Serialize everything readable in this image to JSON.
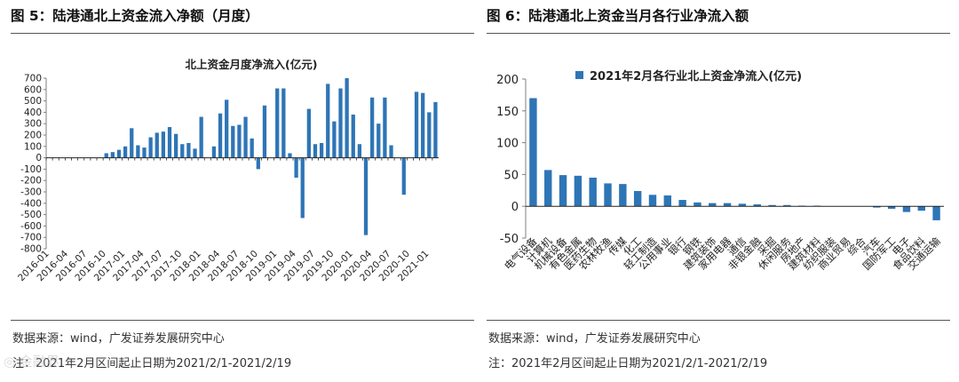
{
  "left": {
    "figure_title": "图 5：陆港通北上资金流入净额（月度）",
    "source": "数据来源：wind，广发证券发展研究中心",
    "note": "注：2021年2月区间起止日期为2021/2/1-2021/2/19"
  },
  "right": {
    "figure_title": "图 6：陆港通北上资金当月各行业净流入额",
    "source": "数据来源：wind，广发证券发展研究中心",
    "note": "注：2021年2月区间起止日期为2021/2/1-2021/2/19"
  },
  "watermark": "◎ 金融界",
  "colors": {
    "bar": "#2e75b6",
    "axis": "#7f7f7f",
    "text": "#222222"
  },
  "chart_data": [
    {
      "type": "bar",
      "title": "北上资金月度净流入(亿元)",
      "xlabel": "",
      "ylabel": "亿元",
      "ylim": [
        -800,
        700
      ],
      "yticks": [
        700,
        600,
        500,
        400,
        300,
        200,
        100,
        0,
        -100,
        -200,
        -300,
        -400,
        -500,
        -600,
        -700,
        -800
      ],
      "categories": [
        "2016-01",
        "2016-02",
        "2016-03",
        "2016-04",
        "2016-05",
        "2016-06",
        "2016-07",
        "2016-08",
        "2016-09",
        "2016-10",
        "2016-11",
        "2016-12",
        "2017-01",
        "2017-02",
        "2017-03",
        "2017-04",
        "2017-05",
        "2017-06",
        "2017-07",
        "2017-08",
        "2017-09",
        "2017-10",
        "2017-11",
        "2017-12",
        "2018-01",
        "2018-02",
        "2018-03",
        "2018-04",
        "2018-05",
        "2018-06",
        "2018-07",
        "2018-08",
        "2018-09",
        "2018-10",
        "2018-11",
        "2018-12",
        "2019-01",
        "2019-02",
        "2019-03",
        "2019-04",
        "2019-05",
        "2019-06",
        "2019-07",
        "2019-08",
        "2019-09",
        "2019-10",
        "2019-11",
        "2019-12",
        "2020-01",
        "2020-02",
        "2020-03",
        "2020-04",
        "2020-05",
        "2020-06",
        "2020-07",
        "2020-08",
        "2020-09",
        "2020-10",
        "2020-11",
        "2020-12",
        "2021-01",
        "2021-02"
      ],
      "tick_labels": [
        "2016-01",
        "2016-04",
        "2016-07",
        "2016-10",
        "2017-01",
        "2017-04",
        "2017-07",
        "2017-10",
        "2018-01",
        "2018-04",
        "2018-07",
        "2018-10",
        "2019-01",
        "2019-04",
        "2019-07",
        "2019-10",
        "2020-01",
        "2020-04",
        "2020-07",
        "2020-10",
        "2021-01"
      ],
      "values": [
        0,
        0,
        0,
        0,
        0,
        0,
        0,
        0,
        0,
        40,
        50,
        70,
        100,
        260,
        110,
        90,
        180,
        220,
        230,
        270,
        210,
        120,
        130,
        80,
        360,
        0,
        100,
        390,
        510,
        280,
        290,
        360,
        170,
        -100,
        460,
        0,
        610,
        610,
        40,
        -175,
        -530,
        430,
        120,
        130,
        650,
        320,
        610,
        700,
        380,
        120,
        -680,
        530,
        300,
        530,
        110,
        0,
        -325,
        0,
        580,
        570,
        400,
        490
      ]
    },
    {
      "type": "bar",
      "title": "2021年2月各行业北上资金净流入(亿元)",
      "legend": "2021年2月各行业北上资金净流入(亿元)",
      "legend_position": "top",
      "xlabel": "",
      "ylabel": "亿元",
      "ylim": [
        -50,
        200
      ],
      "yticks": [
        200,
        150,
        100,
        50,
        0,
        -50
      ],
      "categories": [
        "电气设备",
        "计算机",
        "机械设备",
        "有色金属",
        "医药生物",
        "农林牧渔",
        "传媒",
        "化工",
        "轻工制造",
        "公用事业",
        "银行",
        "钢铁",
        "建筑装饰",
        "家用电器",
        "通信",
        "非银金融",
        "采掘",
        "休闲服务",
        "房地产",
        "建筑材料",
        "纺织服装",
        "商业贸易",
        "综合",
        "汽车",
        "国防军工",
        "电子",
        "食品饮料",
        "交通运输"
      ],
      "values": [
        170,
        57,
        49,
        48,
        45,
        36,
        35,
        24,
        18,
        17,
        10,
        6,
        5,
        5,
        4,
        3,
        2,
        2,
        1,
        1,
        0,
        0,
        0,
        -2,
        -4,
        -9,
        -7,
        -22
      ]
    }
  ]
}
